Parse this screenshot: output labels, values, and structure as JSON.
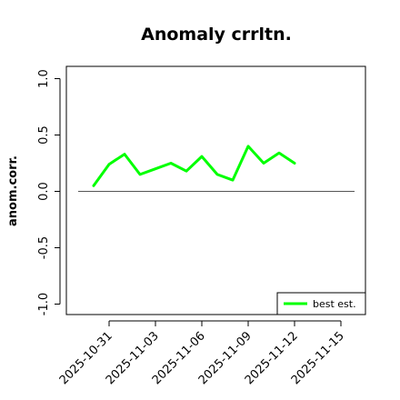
{
  "chart_data": {
    "type": "line",
    "title": "Anomaly crrltn.",
    "xlabel": "",
    "ylabel": "anom.corr.",
    "ylim": [
      -1.05,
      1.05
    ],
    "yticks": [
      "-1.0",
      "-0.5",
      "0.0",
      "0.5",
      "1.0"
    ],
    "ytick_values": [
      -1.0,
      -0.5,
      0.0,
      0.5,
      1.0
    ],
    "xticks": [
      "2025-10-31",
      "2025-11-03",
      "2025-11-06",
      "2025-11-09",
      "2025-11-12",
      "2025-11-15"
    ],
    "highlight_tick": "2025-11-06",
    "highlight_color": "#228B22",
    "x_start": "2025-10-30",
    "x": [
      "2025-10-30",
      "2025-10-31",
      "2025-11-01",
      "2025-11-02",
      "2025-11-03",
      "2025-11-04",
      "2025-11-05",
      "2025-11-06",
      "2025-11-07",
      "2025-11-08",
      "2025-11-09",
      "2025-11-10",
      "2025-11-11",
      "2025-11-12"
    ],
    "series": [
      {
        "name": "best est.",
        "color": "#00ff00",
        "values": [
          0.05,
          0.24,
          0.33,
          0.15,
          0.2,
          0.25,
          0.18,
          0.31,
          0.15,
          0.1,
          0.4,
          0.25,
          0.34,
          0.25
        ]
      }
    ],
    "reference_line": 0.0,
    "reference_color": "#555555",
    "legend_position": "bottom-right",
    "grid": false
  }
}
